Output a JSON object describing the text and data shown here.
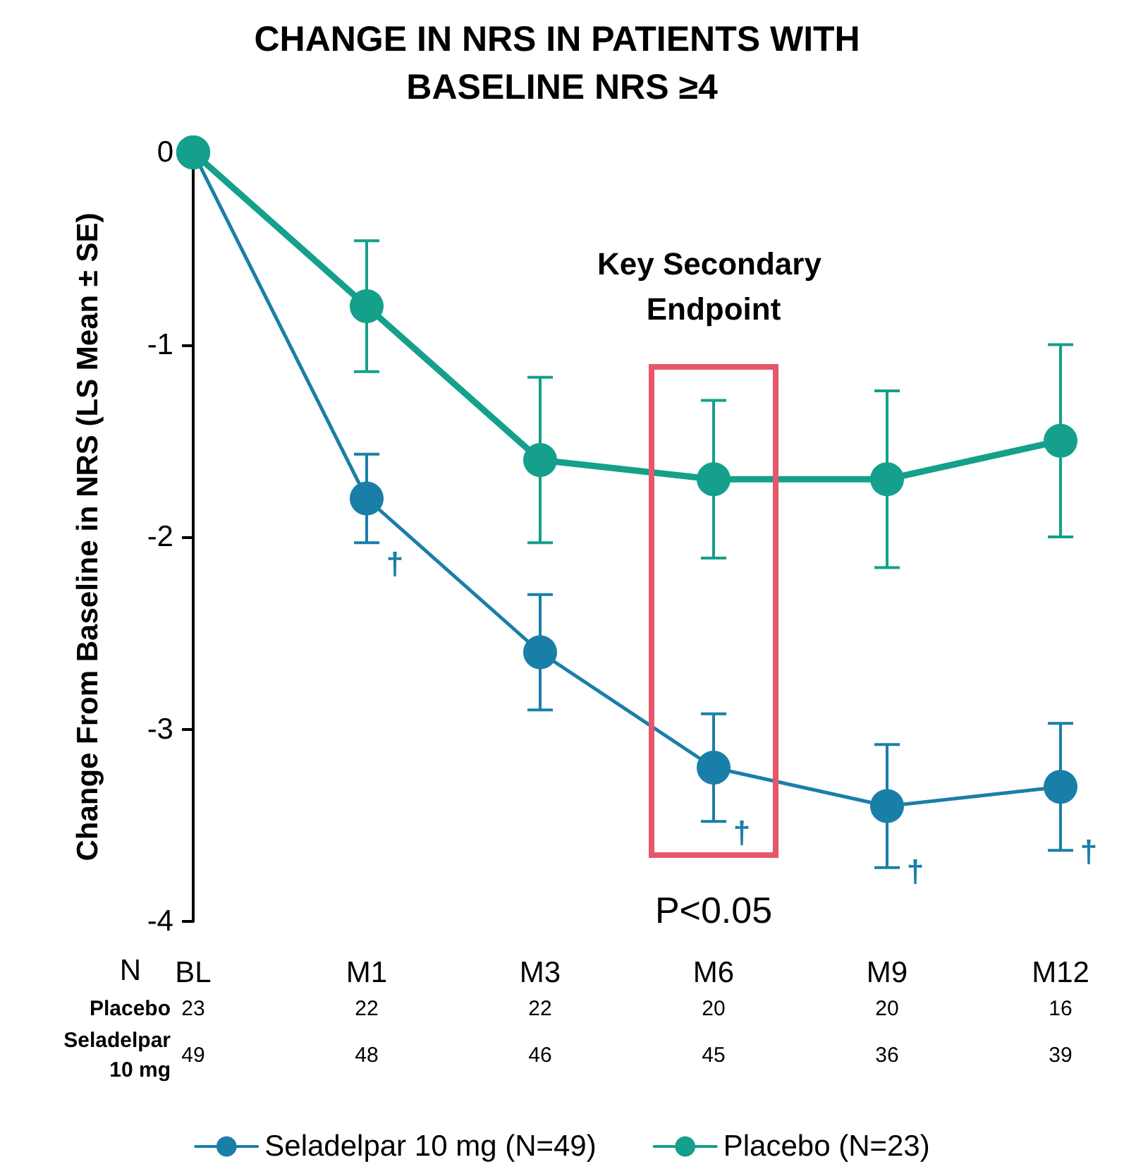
{
  "chart_data": {
    "type": "line",
    "title": "CHANGE IN NRS IN PATIENTS WITH BASELINE NRS ≥4",
    "ylabel": "Change From Baseline in NRS (LS Mean ± SE)",
    "categories": [
      "BL",
      "M1",
      "M3",
      "M6",
      "M9",
      "M12"
    ],
    "ylim": [
      -4,
      0
    ],
    "yticks": [
      0,
      -1,
      -2,
      -3,
      -4
    ],
    "series": [
      {
        "name": "Seladelpar 10 mg (N=49)",
        "color": "#1a7fa8",
        "values": [
          0,
          -1.8,
          -2.6,
          -3.2,
          -3.4,
          -3.3
        ],
        "errors": [
          null,
          0.23,
          0.3,
          0.28,
          0.32,
          0.33
        ]
      },
      {
        "name": "Placebo (N=23)",
        "color": "#14a08a",
        "values": [
          0,
          -0.8,
          -1.6,
          -1.7,
          -1.7,
          -1.5
        ],
        "errors": [
          null,
          0.34,
          0.43,
          0.41,
          0.46,
          0.5
        ]
      }
    ],
    "annotations": [
      "Key Secondary Endpoint",
      "P<0.05",
      "N",
      "Placebo",
      "23",
      "22",
      "22",
      "20",
      "20",
      "16",
      "Seladelpar 10 mg",
      "49",
      "48",
      "46",
      "45",
      "36",
      "39",
      {
        "text": "†",
        "x": "M1",
        "y": -1.8
      },
      {
        "text": "†",
        "x": "M6",
        "y": -3.2
      },
      {
        "text": "†",
        "x": "M9",
        "y": -3.4
      },
      {
        "text": "†",
        "x": "M12",
        "y": -3.3
      }
    ],
    "legend": "bottom",
    "marker": "circle",
    "grid": false
  }
}
